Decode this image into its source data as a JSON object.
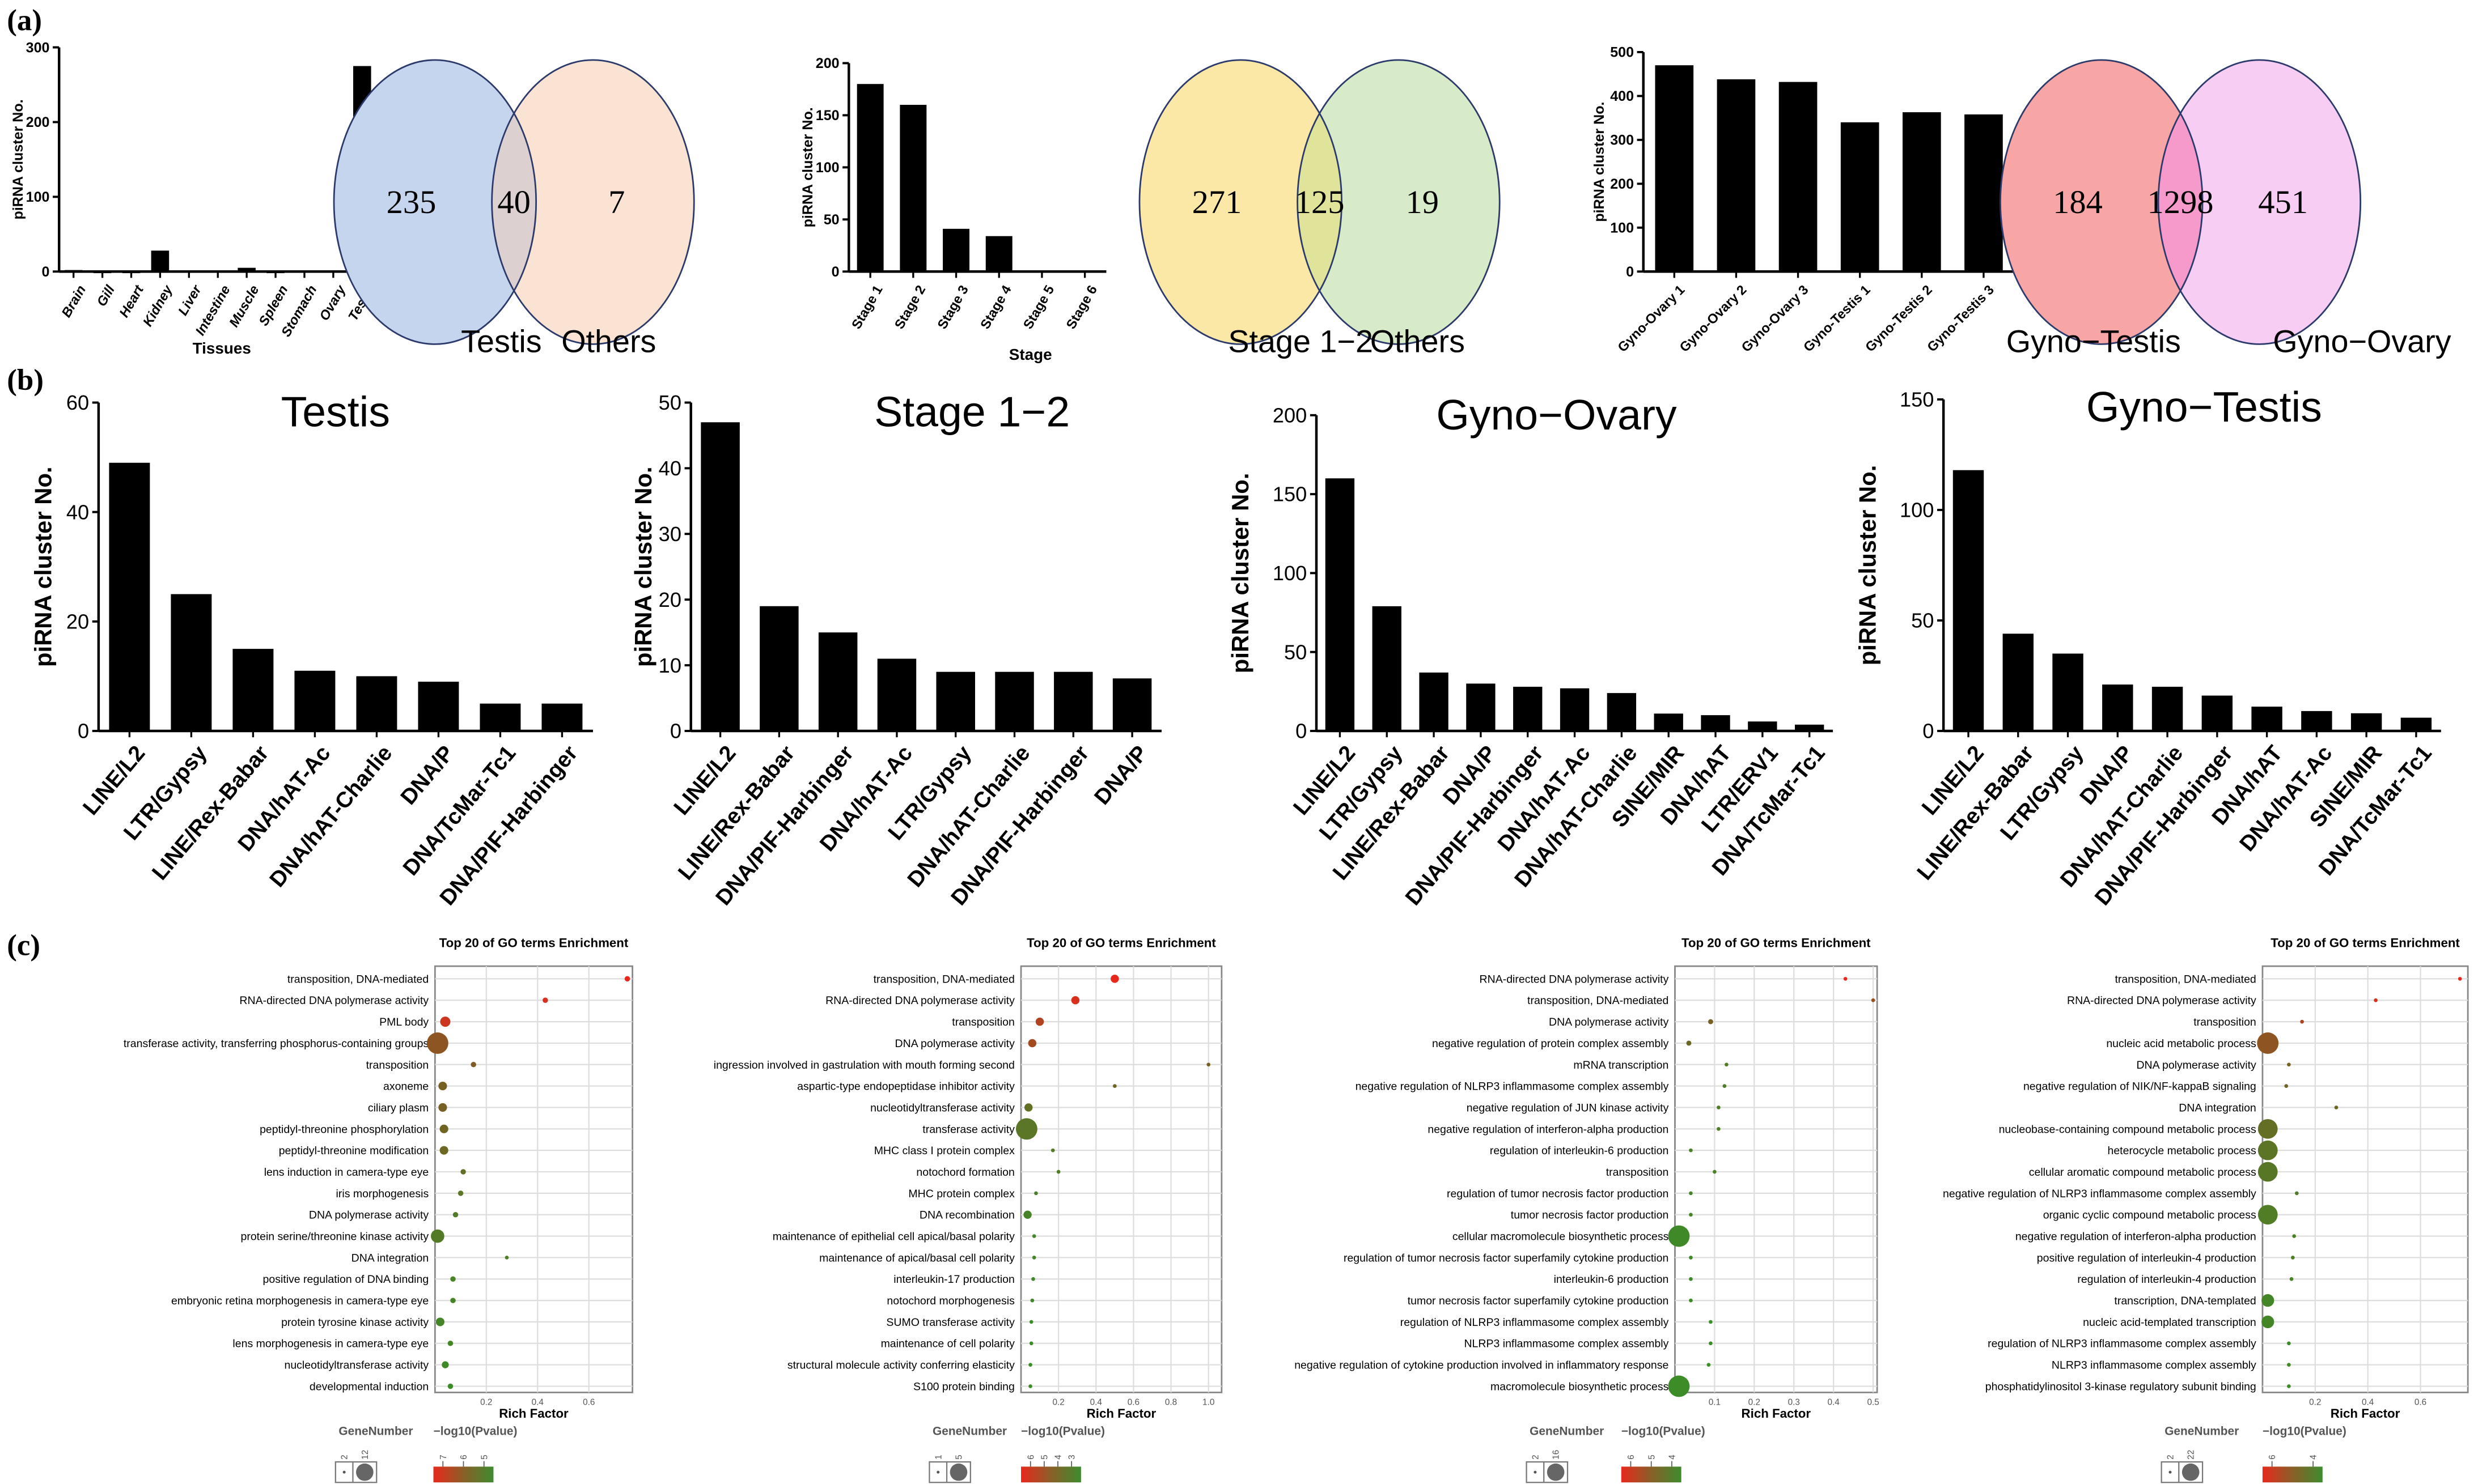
{
  "panel_labels": {
    "a": "(a)",
    "b": "(b)",
    "c": "(c)"
  },
  "chart_data": [
    {
      "id": "a1",
      "type": "bar",
      "title": "",
      "xlabel": "Tissues",
      "ylabel": "piRNA cluster No.",
      "categories": [
        "Brain",
        "Gill",
        "Heart",
        "Kidney",
        "Liver",
        "Intestine",
        "Muscle",
        "Spleen",
        "Stomach",
        "Ovary",
        "Testis"
      ],
      "values": [
        2,
        1,
        1,
        28,
        0,
        0,
        5,
        1,
        0,
        0,
        275
      ],
      "ylim": [
        0,
        300
      ],
      "yticks": [
        "0",
        "100",
        "200",
        "300"
      ]
    },
    {
      "id": "a2",
      "type": "bar",
      "title": "",
      "xlabel": "Stage",
      "ylabel": "piRNA cluster No.",
      "categories": [
        "Stage 1",
        "Stage 2",
        "Stage 3",
        "Stage 4",
        "Stage 5",
        "Stage 6"
      ],
      "values": [
        180,
        160,
        41,
        34,
        0,
        0
      ],
      "ylim": [
        0,
        200
      ],
      "yticks": [
        "0",
        "50",
        "100",
        "150",
        "200"
      ]
    },
    {
      "id": "a3",
      "type": "bar",
      "title": "",
      "xlabel": "",
      "ylabel": "piRNA cluster No.",
      "categories": [
        "Gyno-Ovary 1",
        "Gyno-Ovary 2",
        "Gyno-Ovary 3",
        "Gyno-Testis 1",
        "Gyno-Testis 2",
        "Gyno-Testis 3"
      ],
      "values": [
        470,
        438,
        432,
        340,
        363,
        358
      ],
      "ylim": [
        0,
        500
      ],
      "yticks": [
        "0",
        "100",
        "200",
        "300",
        "400",
        "500"
      ]
    },
    {
      "id": "b1",
      "type": "bar",
      "title": "Testis",
      "xlabel": "",
      "ylabel": "piRNA cluster No.",
      "categories": [
        "LINE/L2",
        "LTR/Gypsy",
        "LINE/Rex-Babar",
        "DNA/hAT-Ac",
        "DNA/hAT-Charlie",
        "DNA/P",
        "DNA/TcMar-Tc1",
        "DNA/PIF-Harbinger"
      ],
      "values": [
        49,
        25,
        15,
        11,
        10,
        9,
        5,
        5
      ],
      "ylim": [
        0,
        60
      ],
      "yticks": [
        "0",
        "20",
        "40",
        "60"
      ]
    },
    {
      "id": "b2",
      "type": "bar",
      "title": "Stage 1−2",
      "xlabel": "",
      "ylabel": "piRNA cluster No.",
      "categories": [
        "LINE/L2",
        "LINE/Rex-Babar",
        "DNA/PIF-Harbinger",
        "DNA/hAT-Ac",
        "LTR/Gypsy",
        "DNA/hAT-Charlie",
        "DNA/PIF-Harbinger",
        "DNA/P"
      ],
      "values": [
        47,
        19,
        15,
        11,
        9,
        9,
        9,
        8
      ],
      "ylim": [
        0,
        50
      ],
      "yticks": [
        "0",
        "10",
        "20",
        "30",
        "40",
        "50"
      ]
    },
    {
      "id": "b3",
      "type": "bar",
      "title": "Gyno−Ovary",
      "xlabel": "",
      "ylabel": "piRNA cluster No.",
      "categories": [
        "LINE/L2",
        "LTR/Gypsy",
        "LINE/Rex-Babar",
        "DNA/P",
        "DNA/PIF-Harbinger",
        "DNA/hAT-Ac",
        "DNA/hAT-Charlie",
        "SINE/MIR",
        "DNA/hAT",
        "LTR/ERV1",
        "DNA/TcMar-Tc1"
      ],
      "values": [
        160,
        79,
        37,
        30,
        28,
        27,
        24,
        11,
        10,
        6,
        4
      ],
      "ylim": [
        0,
        200
      ],
      "yticks": [
        "0",
        "50",
        "100",
        "150",
        "200"
      ]
    },
    {
      "id": "b4",
      "type": "bar",
      "title": "Gyno−Testis",
      "xlabel": "",
      "ylabel": "piRNA cluster No.",
      "categories": [
        "LINE/L2",
        "LINE/Rex-Babar",
        "LTR/Gypsy",
        "DNA/P",
        "DNA/hAT-Charlie",
        "DNA/PIF-Harbinger",
        "DNA/hAT",
        "DNA/hAT-Ac",
        "SINE/MIR",
        "DNA/TcMar-Tc1"
      ],
      "values": [
        118,
        44,
        35,
        21,
        20,
        16,
        11,
        9,
        8,
        6
      ],
      "ylim": [
        0,
        150
      ],
      "yticks": [
        "0",
        "50",
        "100",
        "150"
      ]
    },
    {
      "id": "c1",
      "type": "scatter",
      "title": "Top 20 of GO terms Enrichment",
      "xlabel": "Rich Factor",
      "terms": [
        "transposition, DNA-mediated",
        "RNA-directed DNA polymerase activity",
        "PML body",
        "transferase activity, transferring phosphorus-containing groups",
        "transposition",
        "axoneme",
        "ciliary plasm",
        "peptidyl-threonine phosphorylation",
        "peptidyl-threonine modification",
        "lens induction in camera-type eye",
        "iris morphogenesis",
        "DNA polymerase activity",
        "protein serine/threonine kinase activity",
        "DNA integration",
        "positive regulation of DNA binding",
        "embryonic retina morphogenesis in camera-type eye",
        "protein tyrosine kinase activity",
        "lens morphogenesis in camera-type eye",
        "nucleotidyltransferase activity",
        "developmental induction"
      ],
      "rich_factor": [
        0.75,
        0.43,
        0.04,
        0.01,
        0.15,
        0.03,
        0.03,
        0.035,
        0.035,
        0.11,
        0.1,
        0.08,
        0.01,
        0.28,
        0.07,
        0.07,
        0.02,
        0.06,
        0.04,
        0.06
      ],
      "gene_number": [
        2,
        2,
        5,
        12,
        2,
        4,
        4,
        4,
        4,
        2,
        2,
        2,
        7,
        1,
        2,
        2,
        4,
        2,
        3,
        2
      ],
      "neg_log10_p": [
        7.5,
        7.3,
        7.1,
        6.2,
        6.0,
        5.9,
        5.9,
        5.7,
        5.6,
        5.3,
        5.1,
        4.9,
        4.9,
        4.8,
        4.6,
        4.6,
        4.5,
        4.5,
        4.4,
        4.3
      ],
      "xlim": [
        0,
        0.77
      ],
      "xticks": [
        "0.2",
        "0.4",
        "0.6"
      ],
      "legend_size_title": "GeneNumber",
      "legend_size_values": [
        "2",
        "12"
      ],
      "legend_color_title": "−log10(Pvalue)",
      "legend_color_ticks": [
        "7",
        "6",
        "5"
      ]
    },
    {
      "id": "c2",
      "type": "scatter",
      "title": "Top 20 of GO terms Enrichment",
      "xlabel": "Rich Factor",
      "terms": [
        "transposition, DNA-mediated",
        "RNA-directed DNA polymerase activity",
        "transposition",
        "DNA polymerase activity",
        "ingression involved in gastrulation with mouth forming second",
        "aspartic-type endopeptidase inhibitor activity",
        "nucleotidyltransferase activity",
        "transferase activity",
        "MHC class I protein complex",
        "notochord formation",
        "MHC protein complex",
        "DNA recombination",
        "maintenance of epithelial cell apical/basal polarity",
        "maintenance of apical/basal cell polarity",
        "interleukin-17 production",
        "notochord morphogenesis",
        "SUMO transferase activity",
        "maintenance of cell polarity",
        "structural molecule activity conferring elasticity",
        "S100 protein binding"
      ],
      "rich_factor": [
        0.5,
        0.29,
        0.1,
        0.06,
        1.0,
        0.5,
        0.04,
        0.03,
        0.17,
        0.2,
        0.08,
        0.035,
        0.07,
        0.07,
        0.065,
        0.06,
        0.055,
        0.055,
        0.05,
        0.05
      ],
      "gene_number": [
        2,
        2,
        2,
        2,
        1,
        1,
        2,
        5,
        1,
        1,
        1,
        2,
        1,
        1,
        1,
        1,
        1,
        1,
        1,
        1
      ],
      "neg_log10_p": [
        6.2,
        6.0,
        5.4,
        5.2,
        4.6,
        4.4,
        4.0,
        3.8,
        3.6,
        3.5,
        3.4,
        3.3,
        3.2,
        3.2,
        3.1,
        3.1,
        3.0,
        3.0,
        3.0,
        3.0
      ],
      "xlim": [
        0,
        1.07
      ],
      "xticks": [
        "0.2",
        "0.4",
        "0.6",
        "0.8",
        "1.0"
      ],
      "legend_size_title": "GeneNumber",
      "legend_size_values": [
        "1",
        "5"
      ],
      "legend_color_title": "−log10(Pvalue)",
      "legend_color_ticks": [
        "6",
        "5",
        "4",
        "3"
      ]
    },
    {
      "id": "c3",
      "type": "scatter",
      "title": "Top 20 of GO terms Enrichment",
      "xlabel": "Rich Factor",
      "terms": [
        "RNA-directed DNA polymerase activity",
        "transposition, DNA-mediated",
        "DNA polymerase activity",
        "negative regulation of protein complex assembly",
        "mRNA transcription",
        "negative regulation of NLRP3 inflammasome complex assembly",
        "negative regulation of JUN kinase activity",
        "negative regulation of interferon-alpha production",
        "regulation of interleukin-6 production",
        "transposition",
        "regulation of tumor necrosis factor production",
        "tumor necrosis factor production",
        "cellular macromolecule biosynthetic process",
        "regulation of tumor necrosis factor superfamily cytokine production",
        "interleukin-6 production",
        "tumor necrosis factor superfamily cytokine production",
        "regulation of NLRP3 inflammasome complex assembly",
        "NLRP3 inflammasome complex assembly",
        "negative regulation of cytokine production involved in inflammatory response",
        "macromolecule biosynthetic process"
      ],
      "rich_factor": [
        0.43,
        0.5,
        0.09,
        0.035,
        0.13,
        0.125,
        0.11,
        0.11,
        0.04,
        0.1,
        0.04,
        0.04,
        0.01,
        0.04,
        0.04,
        0.04,
        0.09,
        0.09,
        0.085,
        0.01
      ],
      "gene_number": [
        2,
        2,
        3,
        3,
        2,
        2,
        2,
        2,
        2,
        2,
        2,
        2,
        16,
        2,
        2,
        2,
        2,
        2,
        2,
        16
      ],
      "neg_log10_p": [
        6.6,
        5.6,
        5.2,
        5.0,
        4.4,
        4.3,
        4.3,
        4.3,
        4.2,
        4.2,
        4.1,
        4.1,
        4.0,
        4.0,
        4.0,
        4.0,
        3.9,
        3.9,
        3.9,
        3.9
      ],
      "xlim": [
        0,
        0.51
      ],
      "xticks": [
        "0.1",
        "0.2",
        "0.3",
        "0.4",
        "0.5"
      ],
      "legend_size_title": "GeneNumber",
      "legend_size_values": [
        "2",
        "16"
      ],
      "legend_color_title": "−log10(Pvalue)",
      "legend_color_ticks": [
        "6",
        "5",
        "4"
      ]
    },
    {
      "id": "c4",
      "type": "scatter",
      "title": "Top 20 of GO terms Enrichment",
      "xlabel": "Rich Factor",
      "terms": [
        "transposition, DNA-mediated",
        "RNA-directed DNA polymerase activity",
        "transposition",
        "nucleic acid metabolic process",
        "DNA polymerase activity",
        "negative regulation of NIK/NF-kappaB signaling",
        "DNA integration",
        "nucleobase-containing compound metabolic process",
        "heterocycle metabolic process",
        "cellular aromatic compound metabolic process",
        "negative regulation of NLRP3 inflammasome complex assembly",
        "organic cyclic compound metabolic process",
        "negative regulation of interferon-alpha production",
        "positive regulation of interleukin-4 production",
        "regulation of interleukin-4 production",
        "transcription, DNA-templated",
        "nucleic acid-templated transcription",
        "regulation of NLRP3 inflammasome complex assembly",
        "NLRP3 inflammasome complex assembly",
        "phosphatidylinositol 3-kinase regulatory subunit binding"
      ],
      "rich_factor": [
        0.75,
        0.43,
        0.15,
        0.02,
        0.1,
        0.09,
        0.28,
        0.02,
        0.02,
        0.02,
        0.13,
        0.02,
        0.12,
        0.115,
        0.11,
        0.02,
        0.02,
        0.1,
        0.1,
        0.1
      ],
      "gene_number": [
        2,
        2,
        2,
        22,
        2,
        2,
        2,
        20,
        20,
        20,
        2,
        20,
        2,
        2,
        2,
        12,
        12,
        2,
        2,
        2
      ],
      "neg_log10_p": [
        7.0,
        6.8,
        6.2,
        5.8,
        5.4,
        5.3,
        5.2,
        5.0,
        4.8,
        4.7,
        4.5,
        4.5,
        4.4,
        4.4,
        4.3,
        4.2,
        4.2,
        4.1,
        4.1,
        4.0
      ],
      "xlim": [
        0,
        0.78
      ],
      "xticks": [
        "0.2",
        "0.4",
        "0.6"
      ],
      "legend_size_title": "GeneNumber",
      "legend_size_values": [
        "2",
        "22"
      ],
      "legend_color_title": "−log10(Pvalue)",
      "legend_color_ticks": [
        "6",
        "4"
      ]
    }
  ],
  "venns": [
    {
      "id": "v1",
      "left_label": "Testis",
      "right_label": "Others",
      "left_only": "235",
      "both": "40",
      "right_only": "7",
      "colors": {
        "left": "#c6d5ee",
        "right": "#fae3d3",
        "overlap": "#ddd0d0",
        "stroke": "#2b3a6b"
      }
    },
    {
      "id": "v2",
      "left_label": "Stage 1−2",
      "right_label": "Others",
      "left_only": "271",
      "both": "125",
      "right_only": "19",
      "colors": {
        "left": "#fbe8a6",
        "right": "#d8ebc8",
        "overlap": "#dfe49a",
        "stroke": "#2b3a6b"
      }
    },
    {
      "id": "v3",
      "left_label": "Gyno−Testis",
      "right_label": "Gyno−Ovary",
      "left_only": "184",
      "both": "1298",
      "right_only": "451",
      "colors": {
        "left": "#f8a5a5",
        "right": "#f8cdf3",
        "overlap": "#f59acb",
        "stroke": "#2b3a6b"
      }
    }
  ]
}
